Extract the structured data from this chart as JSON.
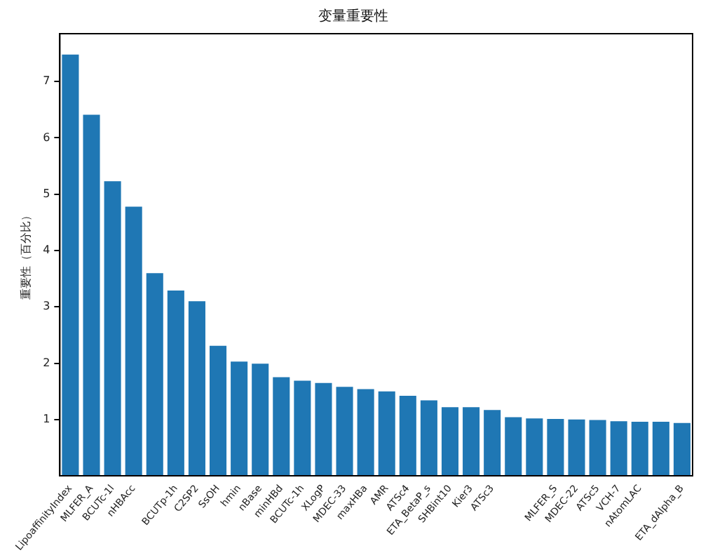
{
  "chart_data": {
    "type": "bar",
    "title": "变量重要性",
    "ylabel": "重要性（百分比）",
    "categories": [
      "LipoaffinityIndex",
      "MLFER_A",
      "BCUTc-1l",
      "nHBAcc",
      null,
      "BCUTp-1h",
      "C2SP2",
      "SsOH",
      "hmin",
      "nBase",
      "minHBd",
      "BCUTc-1h",
      "XLogP",
      "MDEC-33",
      "maxHBa",
      "AMR",
      "ATSc4",
      "ETA_BetaP_s",
      "SHBint10",
      "Kier3",
      "ATSc3",
      null,
      null,
      "MLFER_S",
      "MDEC-22",
      "ATSc5",
      "VCH-7",
      "nAtomLAC",
      null,
      "ETA_dAlpha_B"
    ],
    "values": [
      7.48,
      6.41,
      5.23,
      4.78,
      3.6,
      3.29,
      3.1,
      2.31,
      2.03,
      1.99,
      1.75,
      1.69,
      1.65,
      1.58,
      1.54,
      1.5,
      1.42,
      1.34,
      1.22,
      1.22,
      1.17,
      1.04,
      1.02,
      1.01,
      1.0,
      0.99,
      0.97,
      0.96,
      0.96,
      0.94
    ],
    "color": "#1f77b4",
    "ylim": [
      0,
      7.85
    ],
    "yticks": [
      1,
      2,
      3,
      4,
      5,
      6,
      7
    ],
    "grid": false,
    "legend": false
  }
}
